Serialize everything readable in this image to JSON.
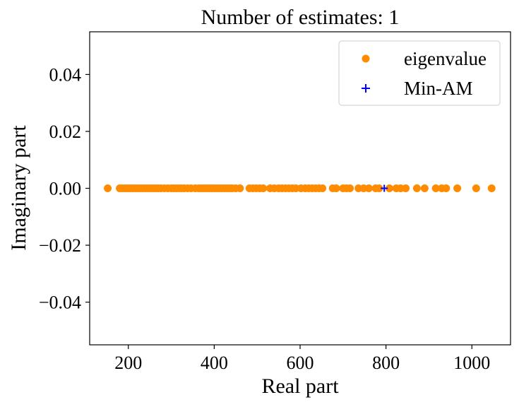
{
  "chart_data": {
    "type": "scatter",
    "title": "Number of estimates: 1",
    "xlabel": "Real part",
    "ylabel": "Imaginary part",
    "xlim": [
      110,
      1090
    ],
    "ylim": [
      -0.055,
      0.055
    ],
    "xticks": [
      200,
      400,
      600,
      800,
      1000
    ],
    "yticks": [
      0.04,
      0.02,
      0.0,
      -0.02,
      -0.04
    ],
    "xtick_labels": [
      "200",
      "400",
      "600",
      "800",
      "1000"
    ],
    "ytick_labels": [
      "0.04",
      "0.02",
      "0.00",
      "−0.02",
      "−0.04"
    ],
    "grid": false,
    "legend_position": "top-right",
    "series": [
      {
        "name": "eigenvalue",
        "marker": "circle",
        "color": "#ff8c00",
        "x": [
          152,
          180,
          186,
          192,
          198,
          204,
          210,
          216,
          222,
          228,
          234,
          240,
          246,
          252,
          258,
          264,
          270,
          276,
          284,
          292,
          300,
          306,
          312,
          318,
          324,
          330,
          338,
          346,
          356,
          364,
          370,
          376,
          382,
          388,
          394,
          400,
          406,
          412,
          418,
          424,
          430,
          436,
          442,
          450,
          460,
          482,
          490,
          498,
          506,
          514,
          530,
          540,
          550,
          558,
          566,
          574,
          582,
          590,
          602,
          612,
          620,
          628,
          636,
          644,
          652,
          676,
          684,
          700,
          708,
          716,
          736,
          748,
          760,
          776,
          784,
          808,
          824,
          834,
          846,
          872,
          890,
          916,
          930,
          940,
          966,
          1010,
          1046
        ],
        "y": [
          0,
          0,
          0,
          0,
          0,
          0,
          0,
          0,
          0,
          0,
          0,
          0,
          0,
          0,
          0,
          0,
          0,
          0,
          0,
          0,
          0,
          0,
          0,
          0,
          0,
          0,
          0,
          0,
          0,
          0,
          0,
          0,
          0,
          0,
          0,
          0,
          0,
          0,
          0,
          0,
          0,
          0,
          0,
          0,
          0,
          0,
          0,
          0,
          0,
          0,
          0,
          0,
          0,
          0,
          0,
          0,
          0,
          0,
          0,
          0,
          0,
          0,
          0,
          0,
          0,
          0,
          0,
          0,
          0,
          0,
          0,
          0,
          0,
          0,
          0,
          0,
          0,
          0,
          0,
          0,
          0,
          0,
          0,
          0,
          0,
          0,
          0
        ]
      },
      {
        "name": "Min-AM",
        "marker": "plus",
        "color": "#0000ff",
        "x": [
          796
        ],
        "y": [
          0
        ]
      }
    ]
  }
}
